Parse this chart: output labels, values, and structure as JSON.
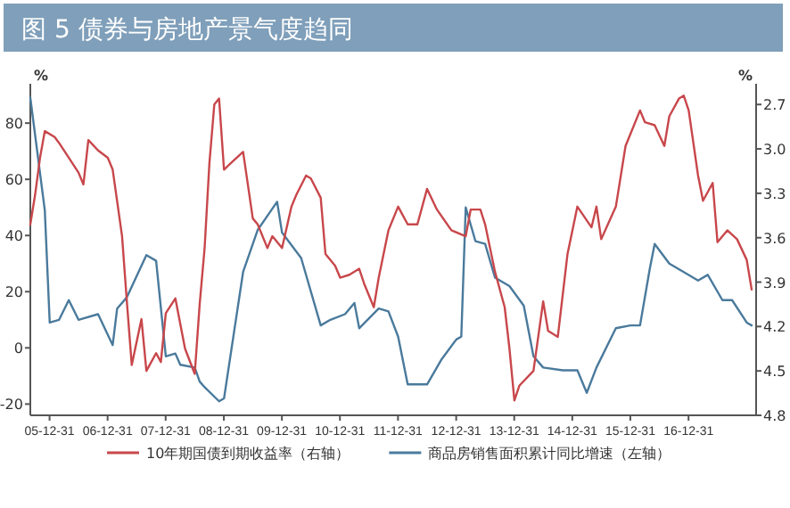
{
  "chart_data": {
    "type": "line",
    "title": "图 5  债券与房地产景气度趋同",
    "ylabel": "%",
    "y2label": "%",
    "legend": "bottom",
    "xlim": [
      "2005-09-01",
      "2018-03-01"
    ],
    "xticks": [
      {
        "value": "2005-12-31",
        "label": "05-12-31"
      },
      {
        "value": "2006-12-31",
        "label": "06-12-31"
      },
      {
        "value": "2007-12-31",
        "label": "07-12-31"
      },
      {
        "value": "2008-12-31",
        "label": "08-12-31"
      },
      {
        "value": "2009-12-31",
        "label": "09-12-31"
      },
      {
        "value": "2010-12-31",
        "label": "10-12-31"
      },
      {
        "value": "2011-12-31",
        "label": "11-12-31"
      },
      {
        "value": "2012-12-31",
        "label": "12-12-31"
      },
      {
        "value": "2013-12-31",
        "label": "13-12-31"
      },
      {
        "value": "2014-12-31",
        "label": "14-12-31"
      },
      {
        "value": "2015-12-31",
        "label": "15-12-31"
      },
      {
        "value": "2016-12-31",
        "label": "16-12-31"
      }
    ],
    "ylim": [
      -24,
      94
    ],
    "yticks": [
      -20,
      0,
      20,
      40,
      60,
      80
    ],
    "y2lim": [
      4.8,
      2.56
    ],
    "y2ticks": [
      {
        "value": 2.7,
        "label": "2.7"
      },
      {
        "value": 3.0,
        "label": "3.0"
      },
      {
        "value": 3.3,
        "label": "3.3"
      },
      {
        "value": 3.6,
        "label": "3.6"
      },
      {
        "value": 3.9,
        "label": "3.9"
      },
      {
        "value": 4.2,
        "label": "4.2"
      },
      {
        "value": 4.5,
        "label": "4.5"
      },
      {
        "value": 4.8,
        "label": "4.8"
      }
    ],
    "series": [
      {
        "name": "10年期国债到期收益率（右轴）",
        "color": "#c8474b",
        "axis": "y2",
        "type": "line",
        "x": [
          "2005-09",
          "2005-10",
          "2005-11",
          "2005-12",
          "2006-02",
          "2006-03",
          "2006-07",
          "2006-08",
          "2006-09",
          "2006-11",
          "2007-01",
          "2007-02",
          "2007-04",
          "2007-05",
          "2007-06",
          "2007-08",
          "2007-09",
          "2007-11",
          "2007-12",
          "2008-01",
          "2008-03",
          "2008-05",
          "2008-07",
          "2008-08",
          "2008-09",
          "2008-10",
          "2008-11",
          "2008-12",
          "2009-01",
          "2009-03",
          "2009-05",
          "2009-07",
          "2009-08",
          "2009-10",
          "2009-11",
          "2010-01",
          "2010-03",
          "2010-04",
          "2010-06",
          "2010-07",
          "2010-09",
          "2010-10",
          "2010-12",
          "2011-01",
          "2011-03",
          "2011-05",
          "2011-06",
          "2011-08",
          "2011-09",
          "2011-11",
          "2012-01",
          "2012-03",
          "2012-05",
          "2012-07",
          "2012-09",
          "2012-12",
          "2013-03",
          "2013-04",
          "2013-06",
          "2013-07",
          "2013-09",
          "2013-11",
          "2013-12",
          "2014-01",
          "2014-02",
          "2014-05",
          "2014-07",
          "2014-08",
          "2014-10",
          "2014-12",
          "2015-02",
          "2015-05",
          "2015-06",
          "2015-07",
          "2015-10",
          "2015-12",
          "2016-03",
          "2016-04",
          "2016-06",
          "2016-08",
          "2016-09",
          "2016-11",
          "2016-12",
          "2017-01",
          "2017-03",
          "2017-04",
          "2017-06",
          "2017-07",
          "2017-09",
          "2017-11",
          "2018-01",
          "2018-02"
        ],
        "values": [
          3.51,
          3.31,
          3.06,
          2.88,
          2.92,
          2.96,
          3.16,
          3.24,
          2.94,
          3.01,
          3.06,
          3.14,
          3.59,
          4.03,
          4.46,
          4.15,
          4.5,
          4.38,
          4.44,
          4.11,
          4.01,
          4.35,
          4.52,
          4.05,
          3.67,
          3.1,
          2.7,
          2.66,
          3.14,
          3.08,
          3.02,
          3.47,
          3.51,
          3.67,
          3.59,
          3.67,
          3.39,
          3.31,
          3.18,
          3.2,
          3.33,
          3.71,
          3.79,
          3.87,
          3.85,
          3.81,
          3.91,
          4.07,
          3.87,
          3.55,
          3.39,
          3.51,
          3.51,
          3.27,
          3.41,
          3.55,
          3.59,
          3.41,
          3.41,
          3.51,
          3.83,
          4.07,
          4.35,
          4.7,
          4.6,
          4.5,
          4.03,
          4.23,
          4.27,
          3.71,
          3.39,
          3.53,
          3.39,
          3.61,
          3.39,
          2.98,
          2.74,
          2.82,
          2.84,
          2.98,
          2.78,
          2.66,
          2.64,
          2.74,
          3.18,
          3.35,
          3.23,
          3.63,
          3.55,
          3.61,
          3.75,
          3.95
        ]
      },
      {
        "name": "商品房销售面积累计同比增速（左轴）",
        "color": "#4a7a9c",
        "axis": "y",
        "type": "line",
        "x": [
          "2005-09",
          "2005-12",
          "2006-01",
          "2006-03",
          "2006-05",
          "2006-07",
          "2006-11",
          "2007-02",
          "2007-03",
          "2007-05",
          "2007-09",
          "2007-11",
          "2008-01",
          "2008-03",
          "2008-04",
          "2008-07",
          "2008-08",
          "2008-09",
          "2008-12",
          "2009-01",
          "2009-05",
          "2009-08",
          "2009-12",
          "2010-01",
          "2010-05",
          "2010-09",
          "2010-11",
          "2011-02",
          "2011-04",
          "2011-05",
          "2011-09",
          "2011-11",
          "2012-01",
          "2012-03",
          "2012-07",
          "2012-10",
          "2013-01",
          "2013-02",
          "2013-03",
          "2013-05",
          "2013-07",
          "2013-09",
          "2013-12",
          "2014-03",
          "2014-05",
          "2014-07",
          "2014-11",
          "2015-02",
          "2015-04",
          "2015-06",
          "2015-10",
          "2016-01",
          "2016-03",
          "2016-05",
          "2016-06",
          "2016-09",
          "2016-12",
          "2017-03",
          "2017-05",
          "2017-08",
          "2017-10",
          "2018-01",
          "2018-02"
        ],
        "values": [
          89,
          49,
          9,
          10,
          17,
          10,
          12,
          1,
          14,
          18,
          33,
          31,
          -3,
          -2,
          -6,
          -7,
          -12,
          -14,
          -19,
          -18,
          27,
          42,
          52,
          41,
          32,
          8,
          10,
          12,
          16,
          7,
          14,
          13,
          4,
          -13,
          -13,
          -4,
          3,
          4,
          50,
          38,
          37,
          25,
          22,
          15,
          -3,
          -7,
          -8,
          -8,
          -16,
          -7,
          7,
          8,
          8,
          28,
          37,
          30,
          27,
          24,
          26,
          17,
          17,
          9,
          8
        ]
      }
    ]
  }
}
